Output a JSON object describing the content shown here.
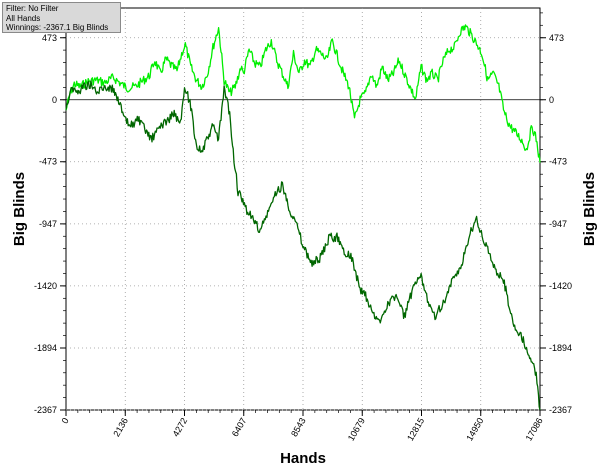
{
  "info_box": {
    "filter": "Filter: No Filter",
    "hands": "All Hands",
    "winnings": "Winnings: -2367.1 Big Blinds"
  },
  "chart_data": {
    "type": "line",
    "title": "",
    "xlabel": "Hands",
    "ylabel": "Big Blinds",
    "xlim": [
      0,
      17086
    ],
    "ylim": [
      -2367,
      700
    ],
    "x_ticks": [
      0,
      2136,
      4272,
      6407,
      8543,
      10679,
      12815,
      14950,
      17086
    ],
    "y_ticks": [
      473,
      0,
      -473,
      -947,
      -1420,
      -1894,
      -2367
    ],
    "grid": true,
    "legend": "none",
    "series": [
      {
        "color": "#00ee00",
        "x": [
          0,
          150,
          300,
          500,
          800,
          1100,
          1400,
          1700,
          2000,
          2200,
          2500,
          2800,
          3000,
          3200,
          3400,
          3600,
          3800,
          4000,
          4200,
          4300,
          4500,
          4700,
          4900,
          5100,
          5300,
          5500,
          5700,
          5900,
          6100,
          6300,
          6400,
          6600,
          6800,
          7000,
          7200,
          7400,
          7600,
          7800,
          8000,
          8200,
          8400,
          8600,
          8800,
          9000,
          9200,
          9400,
          9600,
          9800,
          10000,
          10200,
          10400,
          10600,
          10800,
          11000,
          11200,
          11400,
          11600,
          11800,
          12000,
          12200,
          12400,
          12600,
          12800,
          13000,
          13200,
          13400,
          13600,
          13800,
          14000,
          14200,
          14400,
          14600,
          14800,
          15000,
          15200,
          15400,
          15600,
          15800,
          16000,
          16200,
          16400,
          16600,
          16800,
          16950,
          17086
        ],
        "values": [
          -80,
          50,
          120,
          100,
          140,
          150,
          130,
          170,
          120,
          90,
          100,
          150,
          180,
          300,
          200,
          310,
          260,
          220,
          370,
          420,
          250,
          150,
          100,
          200,
          400,
          550,
          150,
          50,
          100,
          250,
          200,
          380,
          280,
          250,
          380,
          450,
          300,
          200,
          100,
          350,
          200,
          300,
          250,
          380,
          350,
          300,
          450,
          320,
          200,
          100,
          -150,
          0,
          50,
          200,
          100,
          250,
          150,
          200,
          300,
          200,
          100,
          0,
          250,
          150,
          200,
          150,
          300,
          380,
          400,
          520,
          560,
          500,
          430,
          350,
          150,
          200,
          100,
          -100,
          -200,
          -250,
          -300,
          -380,
          -200,
          -300,
          -480
        ]
      },
      {
        "color": "#006600",
        "x": [
          0,
          200,
          400,
          600,
          900,
          1100,
          1400,
          1700,
          1900,
          2100,
          2300,
          2600,
          2900,
          3100,
          3400,
          3700,
          3900,
          4100,
          4300,
          4500,
          4700,
          4900,
          5100,
          5300,
          5500,
          5700,
          5900,
          6000,
          6200,
          6400,
          6700,
          7000,
          7300,
          7600,
          7800,
          8000,
          8300,
          8600,
          8900,
          9200,
          9500,
          9800,
          10000,
          10300,
          10600,
          10800,
          11100,
          11300,
          11600,
          11900,
          12200,
          12500,
          12800,
          13000,
          13300,
          13600,
          13900,
          14200,
          14400,
          14600,
          14800,
          15000,
          15200,
          15500,
          15800,
          16000,
          16200,
          16400,
          16600,
          16800,
          16950,
          17086
        ],
        "values": [
          -60,
          100,
          50,
          100,
          120,
          50,
          100,
          80,
          0,
          -150,
          -200,
          -150,
          -250,
          -300,
          -200,
          -150,
          -100,
          -200,
          100,
          -50,
          -350,
          -400,
          -300,
          -200,
          -300,
          80,
          -100,
          -350,
          -700,
          -800,
          -900,
          -1000,
          -850,
          -700,
          -650,
          -800,
          -950,
          -1150,
          -1250,
          -1200,
          -1050,
          -1050,
          -1150,
          -1200,
          -1450,
          -1500,
          -1650,
          -1700,
          -1550,
          -1500,
          -1650,
          -1450,
          -1350,
          -1500,
          -1650,
          -1550,
          -1400,
          -1300,
          -1150,
          -1000,
          -900,
          -1050,
          -1150,
          -1300,
          -1400,
          -1600,
          -1750,
          -1800,
          -1900,
          -2000,
          -2100,
          -2367
        ]
      }
    ]
  }
}
